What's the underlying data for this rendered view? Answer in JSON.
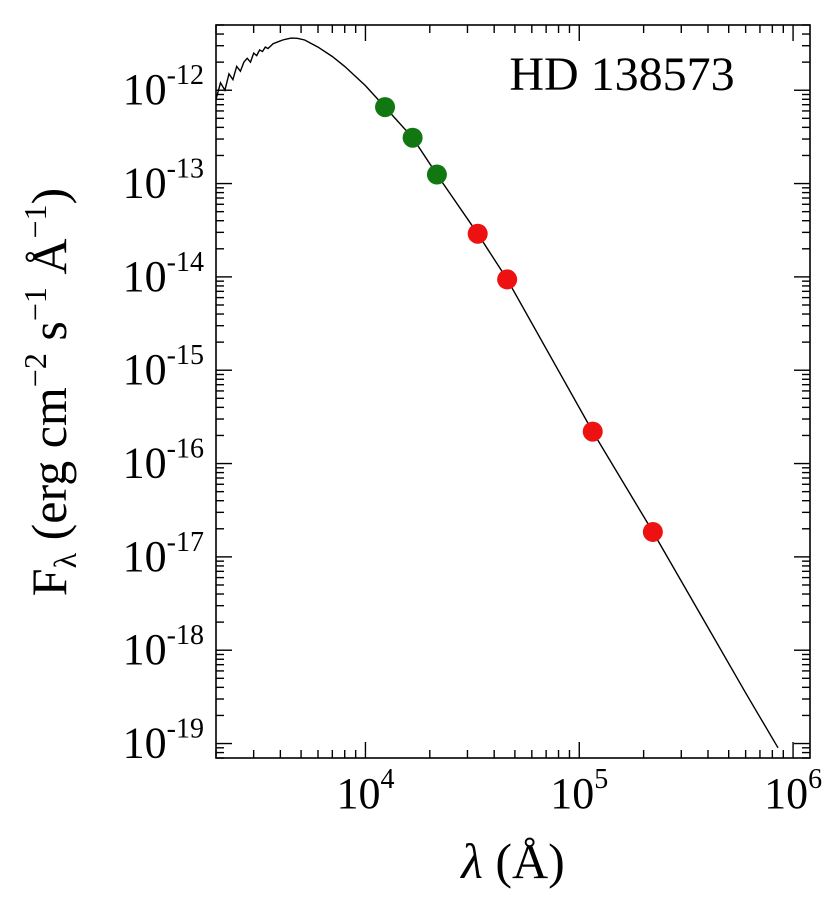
{
  "chart_data": {
    "type": "scatter",
    "title": "",
    "annotation": "HD 138573",
    "xlabel": "λ (Å)",
    "ylabel": "F_λ (erg cm^−2 s^−1 Å^−1)",
    "x_scale": "log",
    "y_scale": "log",
    "xlim": [
      2000,
      1200000
    ],
    "ylim": [
      7e-20,
      5e-12
    ],
    "grid": false,
    "x_ticks": [
      {
        "base": "10",
        "exp": "4",
        "value": 10000
      },
      {
        "base": "10",
        "exp": "5",
        "value": 100000
      },
      {
        "base": "10",
        "exp": "6",
        "value": 1000000
      }
    ],
    "y_ticks": [
      {
        "base": "10",
        "exp": "-12",
        "value": 1e-12
      },
      {
        "base": "10",
        "exp": "-13",
        "value": 1e-13
      },
      {
        "base": "10",
        "exp": "-14",
        "value": 1e-14
      },
      {
        "base": "10",
        "exp": "-15",
        "value": 1e-15
      },
      {
        "base": "10",
        "exp": "-16",
        "value": 1e-16
      },
      {
        "base": "10",
        "exp": "-17",
        "value": 1e-17
      },
      {
        "base": "10",
        "exp": "-18",
        "value": 1e-18
      },
      {
        "base": "10",
        "exp": "-19",
        "value": 1e-19
      }
    ],
    "series": [
      {
        "color": "#117711",
        "points": [
          {
            "x": 12350,
            "y": 6.6e-13
          },
          {
            "x": 16620,
            "y": 3.1e-13
          },
          {
            "x": 21590,
            "y": 1.25e-13
          }
        ]
      },
      {
        "color": "#ee1111",
        "points": [
          {
            "x": 33500,
            "y": 2.9e-14
          },
          {
            "x": 46000,
            "y": 9.4e-15
          },
          {
            "x": 115600,
            "y": 2.2e-16
          },
          {
            "x": 220900,
            "y": 1.85e-17
          }
        ]
      }
    ],
    "model_curve": {
      "color": "#000000",
      "points": [
        [
          2000,
          8e-13
        ],
        [
          2100,
          1.2e-12
        ],
        [
          2200,
          1e-12
        ],
        [
          2300,
          1.5e-12
        ],
        [
          2400,
          1.3e-12
        ],
        [
          2500,
          1.8e-12
        ],
        [
          2600,
          1.6e-12
        ],
        [
          2700,
          2e-12
        ],
        [
          2800,
          2.2e-12
        ],
        [
          2900,
          2e-12
        ],
        [
          3000,
          2.5e-12
        ],
        [
          3100,
          2.35e-12
        ],
        [
          3200,
          2.7e-12
        ],
        [
          3300,
          2.6e-12
        ],
        [
          3400,
          2.9e-12
        ],
        [
          3500,
          2.8e-12
        ],
        [
          3700,
          3.15e-12
        ],
        [
          3900,
          3.3e-12
        ],
        [
          4100,
          3.45e-12
        ],
        [
          4300,
          3.55e-12
        ],
        [
          4500,
          3.62e-12
        ],
        [
          4800,
          3.6e-12
        ],
        [
          5200,
          3.45e-12
        ],
        [
          6000,
          2.9e-12
        ],
        [
          7000,
          2.3e-12
        ],
        [
          8000,
          1.8e-12
        ],
        [
          10000,
          1.12e-12
        ],
        [
          12350,
          6.6e-13
        ],
        [
          16620,
          3.1e-13
        ],
        [
          21590,
          1.25e-13
        ],
        [
          33500,
          2.9e-14
        ],
        [
          46000,
          9.4e-15
        ],
        [
          115600,
          2.2e-16
        ],
        [
          220900,
          1.85e-17
        ],
        [
          400000,
          1.75e-18
        ],
        [
          600000,
          3.5e-19
        ],
        [
          850000,
          9e-20
        ]
      ]
    }
  }
}
